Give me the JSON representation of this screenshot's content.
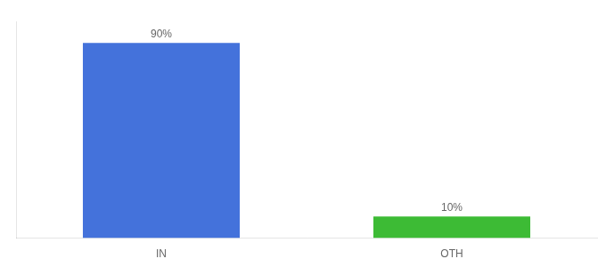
{
  "chart_data": {
    "type": "bar",
    "categories": [
      "IN",
      "OTH"
    ],
    "values": [
      90,
      10
    ],
    "value_labels": [
      "90%",
      "10%"
    ],
    "colors": [
      "#4472db",
      "#3dbb35"
    ],
    "ylim": [
      0,
      100
    ],
    "data_labels": true,
    "tick_labels": "x",
    "grid": false
  }
}
